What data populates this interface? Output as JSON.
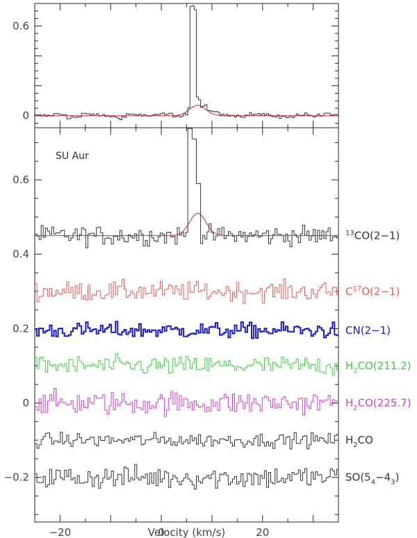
{
  "chart_data": [
    {
      "type": "line",
      "panel": "top",
      "xlim": [
        -25,
        35
      ],
      "ylim": [
        -0.08,
        0.75
      ],
      "yticks": [
        0,
        0.2,
        0.4,
        0.6
      ],
      "ytick_labels": [
        "0",
        "",
        "",
        "0.6"
      ],
      "series": [
        {
          "color": "#333333",
          "style": "step",
          "points": [
            [
              -25,
              0.0
            ],
            [
              -22,
              0.01
            ],
            [
              -19,
              -0.01
            ],
            [
              -16,
              0.01
            ],
            [
              -13,
              0.0
            ],
            [
              -10,
              -0.01
            ],
            [
              -7,
              0.01
            ],
            [
              -4,
              0.0
            ],
            [
              -1,
              0.01
            ],
            [
              2,
              0.0
            ],
            [
              4,
              0.01
            ],
            [
              5,
              0.05
            ],
            [
              5.6,
              0.73
            ],
            [
              6.1,
              0.7
            ],
            [
              6.6,
              0.12
            ],
            [
              7.5,
              0.06
            ],
            [
              9,
              0.03
            ],
            [
              11,
              0.01
            ],
            [
              14,
              0.0
            ],
            [
              17,
              0.01
            ],
            [
              20,
              0.0
            ],
            [
              23,
              -0.01
            ],
            [
              26,
              0.01
            ],
            [
              29,
              0.0
            ],
            [
              32,
              0.01
            ],
            [
              35,
              0.0
            ]
          ]
        },
        {
          "color": "#d22222",
          "style": "gaussian",
          "amplitude": 0.07,
          "center": 7.2,
          "fwhm": 3.8,
          "baseline": 0.0
        }
      ]
    },
    {
      "type": "line",
      "panel": "bottom",
      "xlim": [
        -25,
        35
      ],
      "ylim": [
        -0.32,
        0.74
      ],
      "yticks": [
        -0.2,
        0,
        0.2,
        0.4,
        0.6
      ],
      "ytick_labels": [
        "−0.2",
        "0",
        "0.2",
        "0.4",
        "0.6"
      ],
      "xticks": [
        -20,
        0,
        20
      ],
      "xtick_labels": [
        "−20",
        "0",
        "20"
      ],
      "xlabel": "Velocity (km/s)",
      "annotation": "SU Aur",
      "lines": [
        {
          "label_pre": "",
          "sup": "13",
          "sub": "",
          "label_post": "CO(2−1)",
          "color": "#333333",
          "offset": 0.45,
          "noise": 0.025,
          "line_amp": 0.26,
          "line_center": 5.8
        },
        {
          "label_pre": "C",
          "sup": "17",
          "sub": "",
          "label_post": "O(2−1)",
          "color": "#e85a5a",
          "offset": 0.3,
          "noise": 0.025,
          "line_amp": 0.0,
          "line_center": 0
        },
        {
          "label_pre": "CN(2−1)",
          "sup": "",
          "sub": "",
          "label_post": "",
          "color": "#1a1ad0",
          "offset": 0.195,
          "noise": 0.02,
          "line_amp": 0.0,
          "line_center": 0,
          "bold": true
        },
        {
          "label_pre": "H",
          "sup": "",
          "sub": "2",
          "label_post": "CO(211.2)",
          "color": "#3acf3a",
          "offset": 0.1,
          "noise": 0.025,
          "line_amp": 0.0,
          "line_center": 0
        },
        {
          "label_pre": "H",
          "sup": "",
          "sub": "2",
          "label_post": "CO(225.7)",
          "color": "#d43ad4",
          "offset": 0.0,
          "noise": 0.03,
          "line_amp": 0.0,
          "line_center": 0
        },
        {
          "label_pre": "H",
          "sup": "",
          "sub": "2",
          "label_post": "CO",
          "color": "#333333",
          "offset": -0.1,
          "noise": 0.018,
          "line_amp": 0.0,
          "line_center": 0
        },
        {
          "label_pre": "SO(5",
          "sup": "",
          "sub": "4",
          "label_post": "−4",
          "sub2": "3",
          "label_tail": ")",
          "color": "#333333",
          "offset": -0.2,
          "noise": 0.03,
          "line_amp": 0.0,
          "line_center": 0
        }
      ],
      "fit": {
        "color": "#d22222",
        "amplitude": 0.06,
        "center": 7.2,
        "fwhm": 3.8,
        "baseline": 0.45
      }
    }
  ]
}
